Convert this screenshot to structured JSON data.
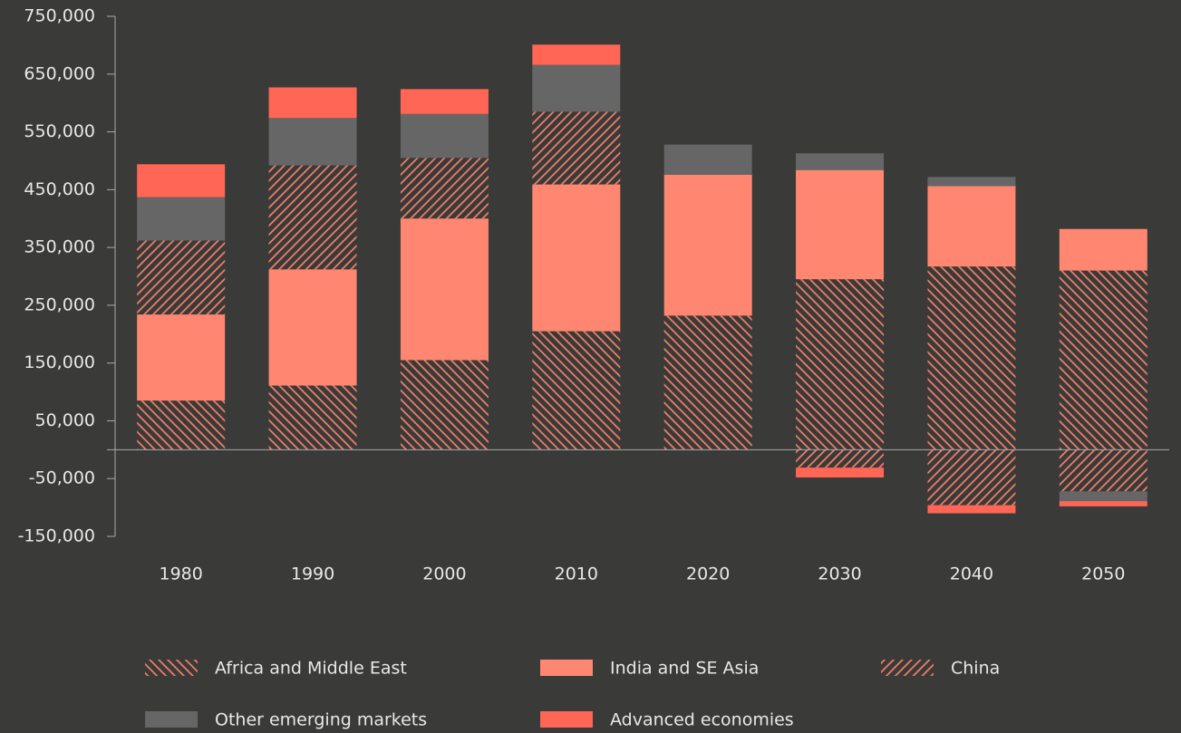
{
  "chart_data": {
    "type": "stacked-bar",
    "categories": [
      "1980",
      "1990",
      "2000",
      "2010",
      "2020",
      "2030",
      "2040",
      "2050"
    ],
    "series": [
      {
        "name": "Africa and Middle East",
        "color": "#ff8670",
        "pattern": "hatch-back",
        "values": [
          85000,
          111000,
          155000,
          205000,
          232000,
          295000,
          317000,
          310000
        ]
      },
      {
        "name": "India and SE Asia",
        "color": "#ff8670",
        "values": [
          149000,
          201000,
          245000,
          254000,
          244000,
          189000,
          139000,
          72000
        ]
      },
      {
        "name": "China",
        "color": "#ff8670",
        "pattern": "hatch-forward",
        "values": [
          128000,
          180000,
          105000,
          126000,
          0,
          -31000,
          -96000,
          -72000
        ]
      },
      {
        "name": "Other emerging markets",
        "color": "#666666",
        "values": [
          75000,
          82000,
          76000,
          81000,
          52000,
          29000,
          16000,
          -17000
        ]
      },
      {
        "name": "Advanced economies",
        "color": "#ff6655",
        "values": [
          57000,
          53000,
          43000,
          35000,
          0,
          -17000,
          -14000,
          -9000
        ]
      }
    ],
    "ylim": [
      -150000,
      750000
    ],
    "yticks": [
      {
        "value": 750000,
        "label": "750,000"
      },
      {
        "value": 650000,
        "label": "650,000"
      },
      {
        "value": 550000,
        "label": "550,000"
      },
      {
        "value": 450000,
        "label": "450,000"
      },
      {
        "value": 350000,
        "label": "350,000"
      },
      {
        "value": 250000,
        "label": "250,000"
      },
      {
        "value": 150000,
        "label": "150,000"
      },
      {
        "value": 50000,
        "label": "50,000"
      },
      {
        "value": -50000,
        "label": "-50,000"
      },
      {
        "value": -150000,
        "label": "-150,000"
      }
    ],
    "grid": false,
    "legend": "bottom"
  }
}
